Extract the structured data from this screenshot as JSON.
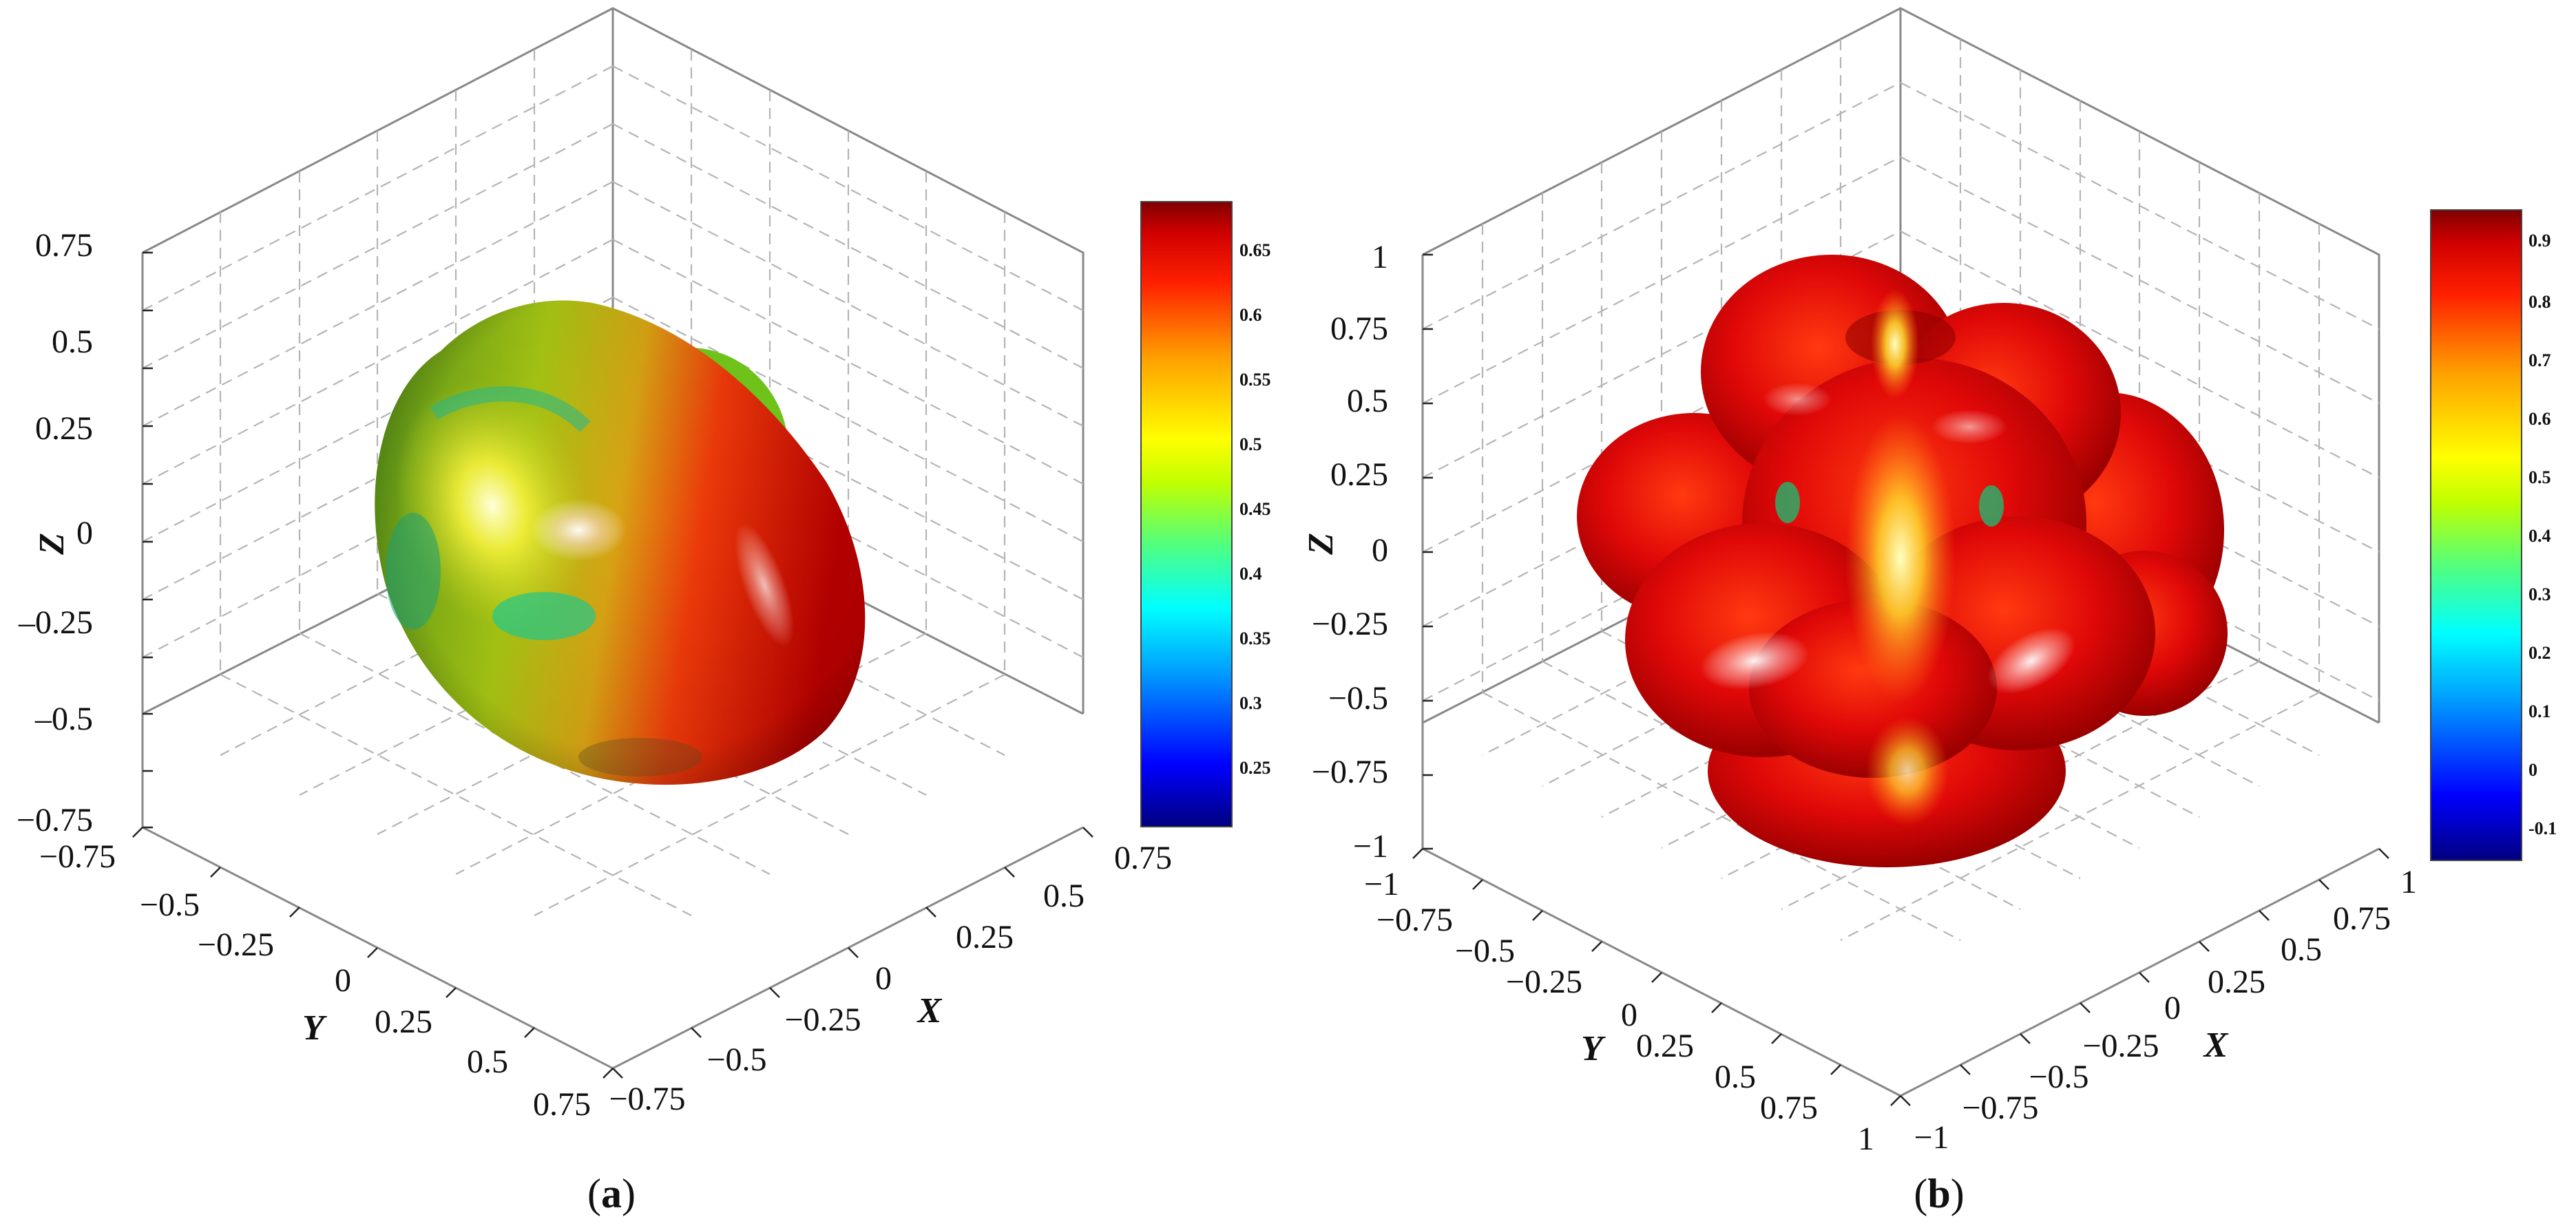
{
  "chart_data": [
    {
      "type": "surface3d",
      "panel_label": "a",
      "caption": "(a)",
      "axes": {
        "x": {
          "label": "X",
          "ticks": [
            "−0.75",
            "−0.5",
            "−0.25",
            "0",
            "0.25",
            "0.5",
            "0.75"
          ],
          "range": [
            -0.75,
            0.75
          ]
        },
        "y": {
          "label": "Y",
          "ticks": [
            "−0.75",
            "−0.5",
            "−0.25",
            "0",
            "0.25",
            "0.5",
            "0.75"
          ],
          "range": [
            -0.75,
            0.75
          ]
        },
        "z": {
          "label": "Z",
          "ticks": [
            "0.75",
            "0.5",
            "0.25",
            "0",
            "–0.25",
            "–0.5",
            "−0.75"
          ],
          "range": [
            -0.75,
            0.75
          ]
        }
      },
      "colorbar": {
        "ticks": [
          "0.65",
          "0.6",
          "0.55",
          "0.5",
          "0.45",
          "0.4",
          "0.35",
          "0.3",
          "0.25"
        ],
        "range": [
          0.21,
          0.69
        ]
      },
      "grid": true
    },
    {
      "type": "surface3d",
      "panel_label": "b",
      "caption": "(b)",
      "axes": {
        "x": {
          "label": "X",
          "ticks": [
            "−1",
            "−0.75",
            "−0.5",
            "−0.25",
            "0",
            "0.25",
            "0.5",
            "0.75",
            "1"
          ],
          "range": [
            -1,
            1
          ]
        },
        "y": {
          "label": "Y",
          "ticks": [
            "−1",
            "−0.75",
            "−0.5",
            "−0.25",
            "0",
            "0.25",
            "0.5",
            "0.75",
            "1"
          ],
          "range": [
            -1,
            1
          ]
        },
        "z": {
          "label": "Z",
          "ticks": [
            "1",
            "0.75",
            "0.5",
            "0.25",
            "0",
            "−0.25",
            "−0.5",
            "−0.75",
            "−1"
          ],
          "range": [
            -1,
            1
          ]
        }
      },
      "colorbar": {
        "ticks": [
          "0.9",
          "0.8",
          "0.7",
          "0.6",
          "0.5",
          "0.4",
          "0.3",
          "0.2",
          "0.1",
          "0",
          "-0.1"
        ],
        "range": [
          -0.15,
          0.95
        ]
      },
      "grid": true
    }
  ],
  "colors": {
    "jet": [
      "#000080",
      "#0000ff",
      "#00a0ff",
      "#00ffff",
      "#50ff80",
      "#c0ff00",
      "#ffff00",
      "#ffa000",
      "#ff2000",
      "#d00000",
      "#800000"
    ]
  }
}
